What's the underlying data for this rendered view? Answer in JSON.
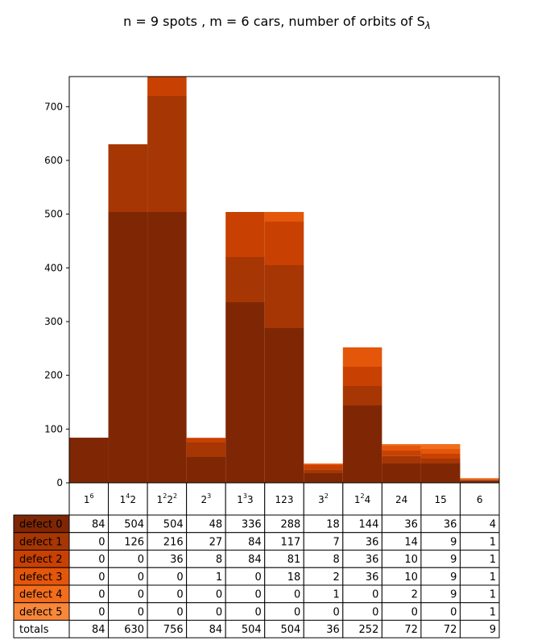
{
  "chart_data": {
    "type": "bar",
    "stacked": true,
    "title": "n = 9 spots , m = 6 cars, number of orbits of S",
    "title_subscript": "λ",
    "categories": [
      {
        "base": "1",
        "sup": "6"
      },
      {
        "base": "1",
        "sup": "4",
        "tail": "2"
      },
      {
        "base": "1",
        "sup": "2",
        "tail": "2",
        "tail_sup": "2"
      },
      {
        "base": "2",
        "sup": "3"
      },
      {
        "base": "1",
        "sup": "3",
        "tail": "3"
      },
      {
        "base": "123"
      },
      {
        "base": "3",
        "sup": "2"
      },
      {
        "base": "1",
        "sup": "2",
        "tail": "4"
      },
      {
        "base": "24"
      },
      {
        "base": "15"
      },
      {
        "base": "6"
      }
    ],
    "series": [
      {
        "name": "defect 0",
        "color": "#7f2704",
        "values": [
          84,
          504,
          504,
          48,
          336,
          288,
          18,
          144,
          36,
          36,
          4
        ]
      },
      {
        "name": "defect 1",
        "color": "#a63603",
        "values": [
          0,
          126,
          216,
          27,
          84,
          117,
          7,
          36,
          14,
          9,
          1
        ]
      },
      {
        "name": "defect 2",
        "color": "#c84102",
        "values": [
          0,
          0,
          36,
          8,
          84,
          81,
          8,
          36,
          10,
          9,
          1
        ]
      },
      {
        "name": "defect 3",
        "color": "#e4560a",
        "values": [
          0,
          0,
          0,
          1,
          0,
          18,
          2,
          36,
          10,
          9,
          1
        ]
      },
      {
        "name": "defect 4",
        "color": "#f26d1c",
        "values": [
          0,
          0,
          0,
          0,
          0,
          0,
          1,
          0,
          2,
          9,
          1
        ]
      },
      {
        "name": "defect 5",
        "color": "#f9873a",
        "values": [
          0,
          0,
          0,
          0,
          0,
          0,
          0,
          0,
          0,
          0,
          1
        ]
      }
    ],
    "totals_label": "totals",
    "totals": [
      84,
      630,
      756,
      84,
      504,
      504,
      36,
      252,
      72,
      72,
      9
    ],
    "ylim": [
      0,
      756
    ],
    "yticks": [
      0,
      100,
      200,
      300,
      400,
      500,
      600,
      700
    ],
    "xlabel": "",
    "ylabel": "",
    "grid": false,
    "legend": "table-row-labels"
  }
}
